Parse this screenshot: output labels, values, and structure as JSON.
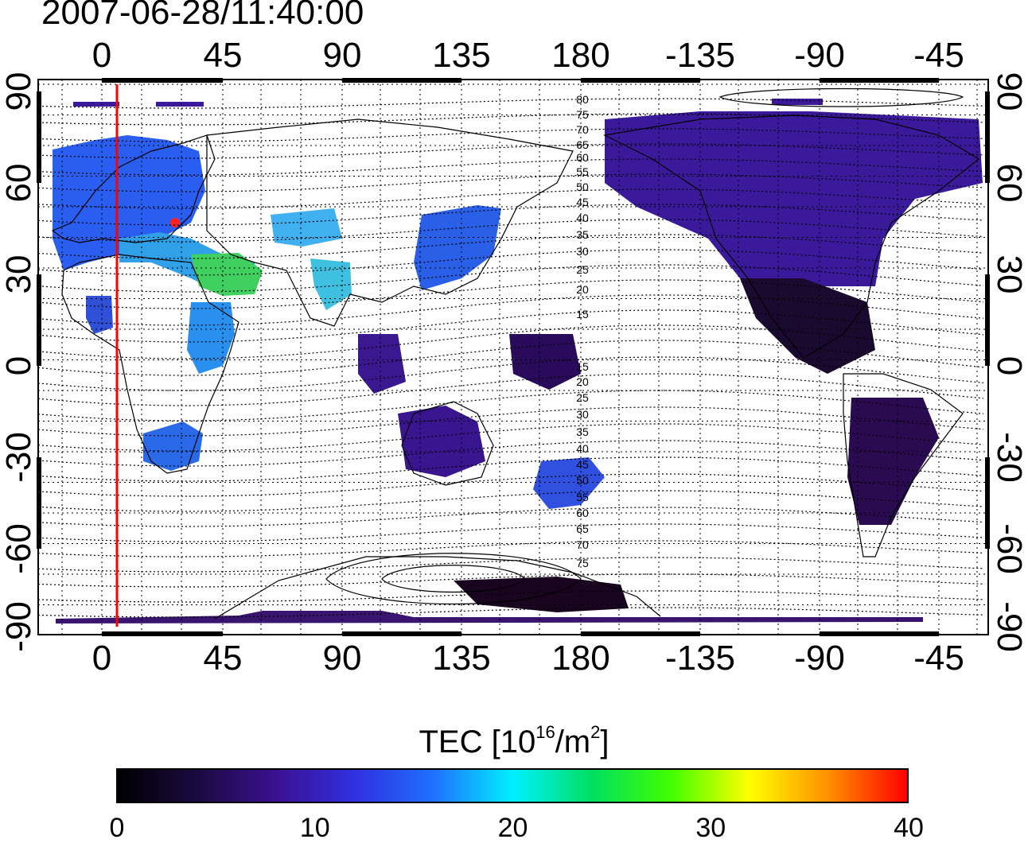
{
  "timestamp": "2007-06-28/11:40:00",
  "map": {
    "x_ticks": [
      "0",
      "45",
      "90",
      "135",
      "180",
      "-135",
      "-90",
      "-45"
    ],
    "y_ticks": [
      "90",
      "60",
      "30",
      "0",
      "-30",
      "-60",
      "-90"
    ],
    "contour_labels": [
      "80",
      "75",
      "70",
      "65",
      "60",
      "55",
      "50",
      "45",
      "40",
      "35",
      "30",
      "25",
      "20",
      "15",
      "15",
      "20",
      "25",
      "30",
      "35",
      "40",
      "45",
      "50",
      "55",
      "60",
      "65",
      "70",
      "75"
    ],
    "colors": {
      "frame": "#000000",
      "grid": "#000000",
      "coast": "#000000",
      "marker_line": "#ff0000",
      "contour": "#000000"
    }
  },
  "colorbar": {
    "title_prefix": "TEC  [10",
    "title_exp1": "16",
    "title_mid": "/m",
    "title_exp2": "2",
    "title_suffix": "]",
    "min": 0,
    "max": 40,
    "ticks": [
      "0",
      "10",
      "20",
      "30",
      "40"
    ],
    "gradient": [
      "#000000",
      "#1a0a40",
      "#3a1090",
      "#3030e0",
      "#2070ff",
      "#00f0ff",
      "#00e060",
      "#40ff00",
      "#ffff00",
      "#ff9000",
      "#ff0000"
    ]
  }
}
